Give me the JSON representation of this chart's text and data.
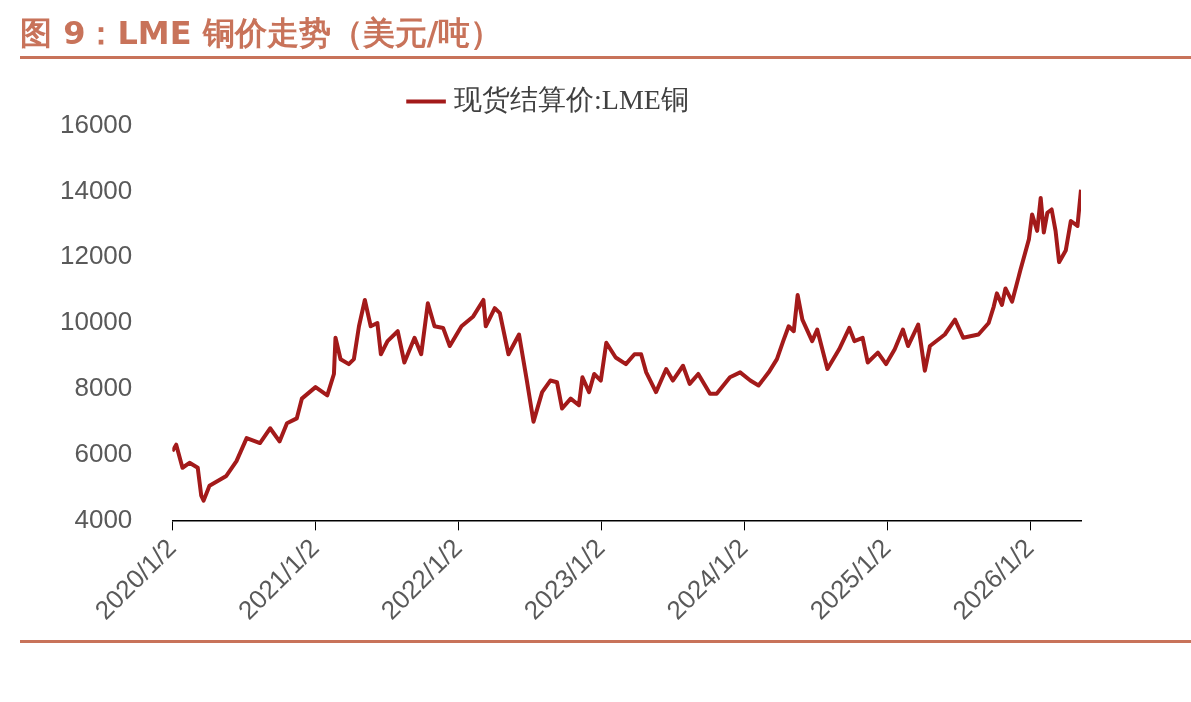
{
  "chart_data": {
    "type": "line",
    "title": "图 9：LME 铜价走势（美元/吨）",
    "x": [
      "2020-01-02",
      "2020-01-12",
      "2020-01-28",
      "2020-02-15",
      "2020-03-07",
      "2020-03-16",
      "2020-03-22",
      "2020-04-06",
      "2020-05-19",
      "2020-06-14",
      "2020-07-10",
      "2020-08-13",
      "2020-09-08",
      "2020-10-02",
      "2020-10-21",
      "2020-11-15",
      "2020-11-28",
      "2021-01-02",
      "2021-02-01",
      "2021-02-18",
      "2021-02-22",
      "2021-03-07",
      "2021-03-28",
      "2021-04-10",
      "2021-04-23",
      "2021-05-08",
      "2021-05-23",
      "2021-06-09",
      "2021-06-18",
      "2021-07-05",
      "2021-07-31",
      "2021-08-17",
      "2021-09-12",
      "2021-09-29",
      "2021-10-16",
      "2021-11-02",
      "2021-11-24",
      "2021-12-11",
      "2022-01-10",
      "2022-02-09",
      "2022-03-07",
      "2022-03-13",
      "2022-04-05",
      "2022-04-18",
      "2022-05-10",
      "2022-06-06",
      "2022-06-26",
      "2022-07-13",
      "2022-08-04",
      "2022-08-25",
      "2022-09-11",
      "2022-09-24",
      "2022-10-16",
      "2022-11-06",
      "2022-11-15",
      "2022-12-02",
      "2022-12-15",
      "2023-01-01",
      "2023-01-15",
      "2023-02-08",
      "2023-03-06",
      "2023-03-28",
      "2023-04-14",
      "2023-04-27",
      "2023-05-22",
      "2023-06-17",
      "2023-07-04",
      "2023-07-30",
      "2023-08-16",
      "2023-09-07",
      "2023-10-07",
      "2023-10-24",
      "2023-11-27",
      "2023-12-23",
      "2024-01-18",
      "2024-02-08",
      "2024-03-05",
      "2024-03-26",
      "2024-04-11",
      "2024-04-25",
      "2024-05-08",
      "2024-05-18",
      "2024-05-30",
      "2024-06-24",
      "2024-07-07",
      "2024-08-02",
      "2024-09-01",
      "2024-09-27",
      "2024-10-10",
      "2024-10-31",
      "2024-11-13",
      "2024-12-09",
      "2024-12-30",
      "2025-01-21",
      "2025-02-11",
      "2025-02-24",
      "2025-03-22",
      "2025-04-08",
      "2025-04-21",
      "2025-05-29",
      "2025-06-24",
      "2025-07-15",
      "2025-08-23",
      "2025-09-18",
      "2025-10-01",
      "2025-10-09",
      "2025-10-22",
      "2025-10-31",
      "2025-11-17",
      "2025-12-08",
      "2025-12-30",
      "2026-01-07",
      "2026-01-20",
      "2026-01-29",
      "2026-02-06",
      "2026-02-15",
      "2026-02-26",
      "2026-03-08",
      "2026-03-17",
      "2026-04-03",
      "2026-04-16",
      "2026-05-03",
      "2026-05-12"
    ],
    "series": [
      {
        "name": "现货结算价:LME铜",
        "color": "#a31a1a",
        "values": [
          6100,
          6300,
          5600,
          5750,
          5600,
          4750,
          4600,
          5050,
          5350,
          5800,
          6500,
          6350,
          6800,
          6400,
          6950,
          7100,
          7700,
          8050,
          7800,
          8450,
          9550,
          8900,
          8750,
          8900,
          9900,
          10700,
          9900,
          10000,
          9050,
          9450,
          9750,
          8800,
          9550,
          9050,
          10600,
          9900,
          9850,
          9300,
          9900,
          10200,
          10700,
          9900,
          10450,
          10300,
          9050,
          9650,
          8250,
          7000,
          7900,
          8250,
          8200,
          7400,
          7700,
          7500,
          8350,
          7900,
          8450,
          8250,
          9400,
          8950,
          8750,
          9050,
          9050,
          8500,
          7900,
          8600,
          8250,
          8700,
          8150,
          8450,
          7850,
          7850,
          8350,
          8500,
          8250,
          8100,
          8500,
          8900,
          9450,
          9900,
          9750,
          10850,
          10100,
          9450,
          9800,
          8600,
          9200,
          9850,
          9450,
          9550,
          8800,
          9100,
          8750,
          9200,
          9800,
          9300,
          9950,
          8550,
          9300,
          9650,
          10100,
          9550,
          9650,
          10000,
          10500,
          10900,
          10550,
          11050,
          10650,
          11600,
          12550,
          13300,
          12800,
          13800,
          12750,
          13350,
          13450,
          12800,
          11850,
          12200,
          13100,
          12950,
          14050
        ]
      }
    ],
    "xlim": [
      "2020-01-02",
      "2026-05-12"
    ],
    "xticks": [
      {
        "value": "2020-01-02",
        "label": "2020/1/2"
      },
      {
        "value": "2021-01-02",
        "label": "2021/1/2"
      },
      {
        "value": "2022-01-02",
        "label": "2022/1/2"
      },
      {
        "value": "2023-01-02",
        "label": "2023/1/2"
      },
      {
        "value": "2024-01-02",
        "label": "2024/1/2"
      },
      {
        "value": "2025-01-02",
        "label": "2025/1/2"
      },
      {
        "value": "2026-01-02",
        "label": "2026/1/2"
      }
    ],
    "ylim": [
      4000,
      16000
    ],
    "yticks": [
      4000,
      6000,
      8000,
      10000,
      12000,
      14000,
      16000
    ],
    "legend": "top",
    "grid": false,
    "marker": "none",
    "line_style": "solid"
  }
}
